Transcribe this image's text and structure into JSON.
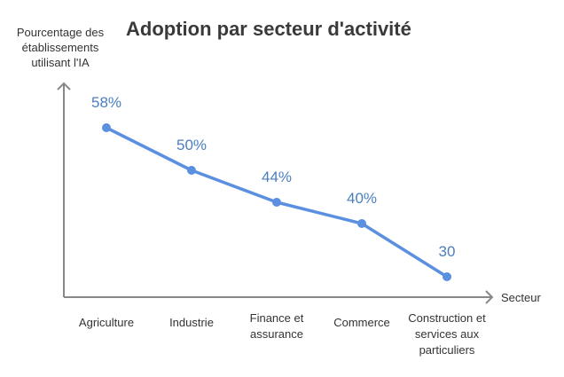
{
  "chart_data": {
    "type": "line",
    "title": "Adoption par secteur d'activité",
    "ylabel": [
      "Pourcentage des",
      "établissements",
      "utilisant l'IA"
    ],
    "xlabel": "Secteur",
    "categories": [
      [
        "Agriculture"
      ],
      [
        "Industrie"
      ],
      [
        "Finance et",
        "assurance"
      ],
      [
        "Commerce"
      ],
      [
        "Construction et",
        "services aux",
        "particuliers"
      ]
    ],
    "values": [
      58,
      50,
      44,
      40,
      30
    ],
    "data_labels": [
      "58%",
      "50%",
      "44%",
      "40%",
      "30"
    ],
    "grid": false,
    "colors": {
      "line": "#5b8fe0",
      "labels": "#4a7fc0",
      "axis": "#888888"
    }
  }
}
